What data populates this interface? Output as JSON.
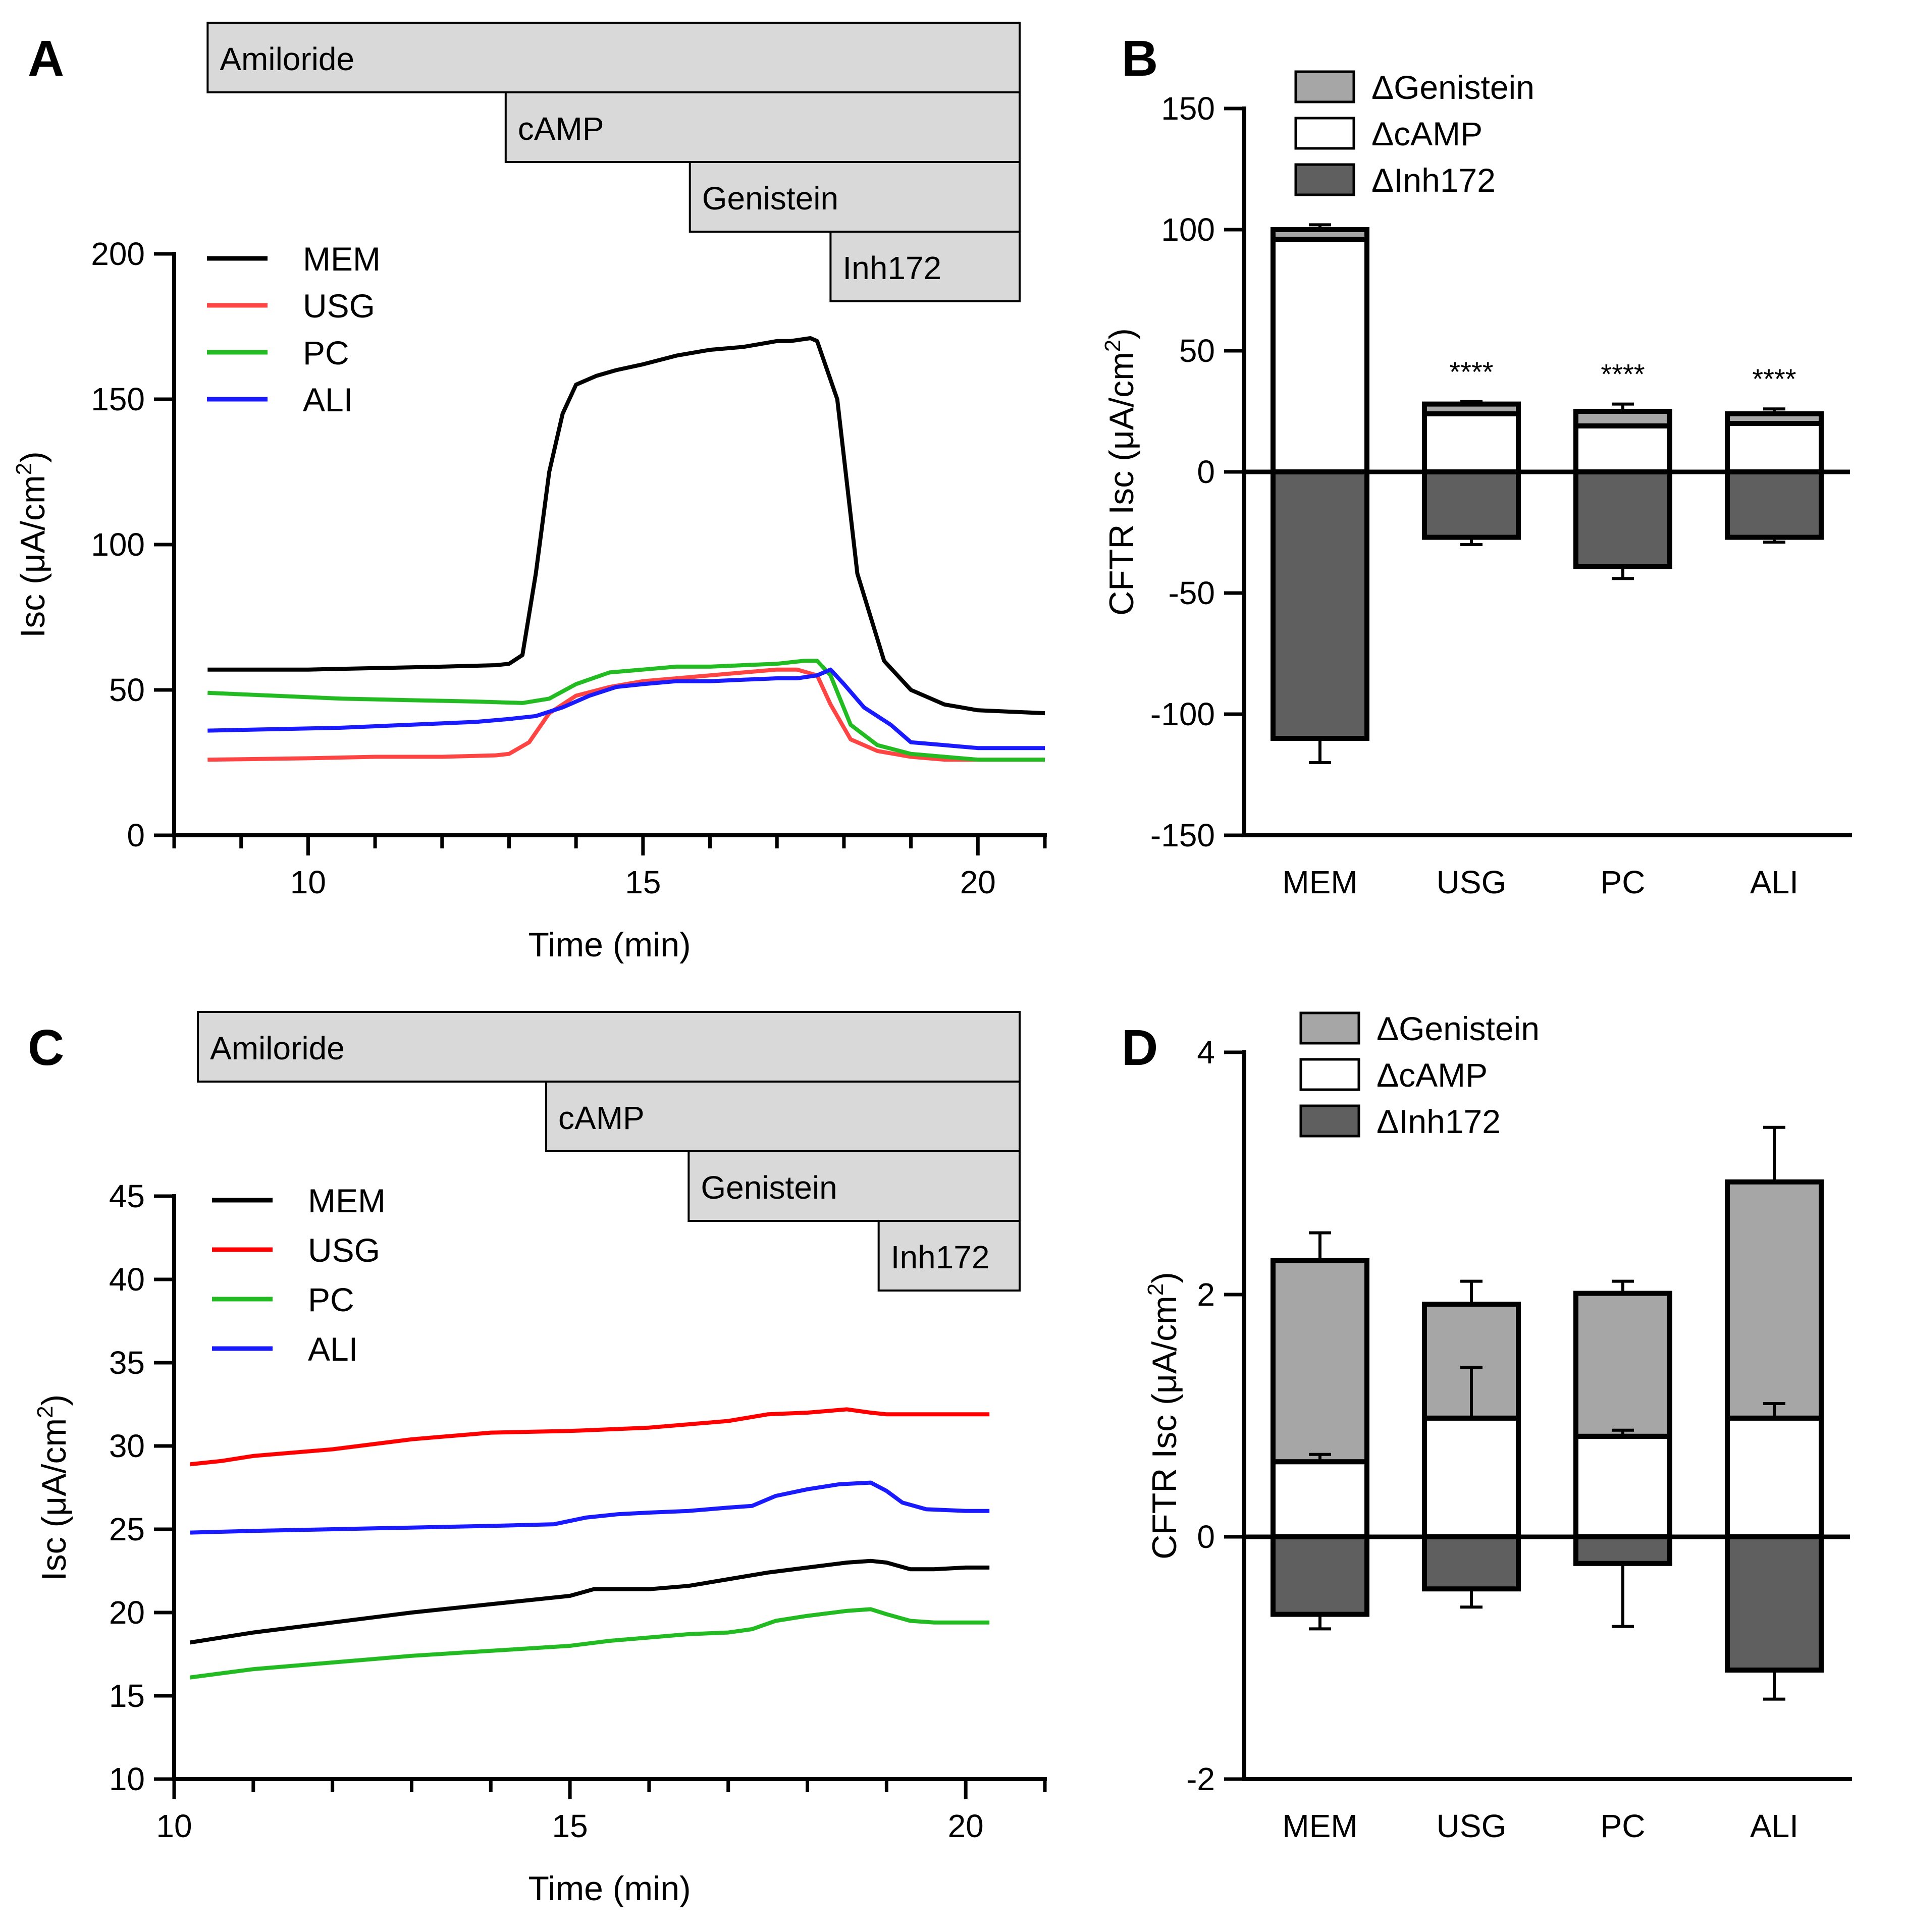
{
  "panels": [
    {
      "label": "A",
      "chart_data": {
        "type": "line",
        "xlabel": "Time (min)",
        "ylabel": "Isc (μA/cm²)",
        "xlim": [
          8.0,
          21.0
        ],
        "ylim": [
          0,
          200
        ],
        "xticks": [
          10,
          15,
          20
        ],
        "yticks": [
          0,
          50,
          100,
          150,
          200
        ],
        "legend": [
          "MEM",
          "USG",
          "PC",
          "ALI"
        ],
        "treatments": [
          {
            "label": "Amiloride",
            "start": 8.5
          },
          {
            "label": "cAMP",
            "start": 12.95
          },
          {
            "label": "Genistein",
            "start": 15.7
          },
          {
            "label": "Inh172",
            "start": 17.8
          }
        ],
        "series": [
          {
            "name": "MEM",
            "color": "#000000",
            "x": [
              8.5,
              10,
              11,
              12,
              12.8,
              13.0,
              13.2,
              13.4,
              13.6,
              13.8,
              14.0,
              14.3,
              14.6,
              15.0,
              15.5,
              16.0,
              16.5,
              17.0,
              17.2,
              17.5,
              17.6,
              17.9,
              18.2,
              18.6,
              19.0,
              19.5,
              20.0,
              21.0
            ],
            "y": [
              57,
              57,
              57.5,
              58,
              58.5,
              59,
              62,
              90,
              125,
              145,
              155,
              158,
              160,
              162,
              165,
              167,
              168,
              170,
              170,
              171,
              170,
              150,
              90,
              60,
              50,
              45,
              43,
              42
            ]
          },
          {
            "name": "USG",
            "color": "#ff4444",
            "x": [
              8.5,
              10,
              11,
              12,
              12.8,
              13.0,
              13.3,
              13.6,
              14.0,
              14.5,
              15.0,
              15.5,
              16.0,
              16.5,
              17.0,
              17.3,
              17.6,
              17.8,
              18.1,
              18.5,
              19.0,
              19.5,
              20.0,
              21.0
            ],
            "y": [
              26,
              26.5,
              27,
              27,
              27.5,
              28,
              32,
              42,
              48,
              51,
              53,
              54,
              55,
              56,
              57,
              57,
              55,
              45,
              33,
              29,
              27,
              26,
              26,
              26
            ]
          },
          {
            "name": "PC",
            "color": "#22bb22",
            "x": [
              8.5,
              9.5,
              10.5,
              11.5,
              12.5,
              13.2,
              13.6,
              14.0,
              14.5,
              15.0,
              15.5,
              16.0,
              16.5,
              17.0,
              17.4,
              17.6,
              17.8,
              18.1,
              18.5,
              19.0,
              19.5,
              20.0,
              21.0
            ],
            "y": [
              49,
              48,
              47,
              46.5,
              46,
              45.5,
              47,
              52,
              56,
              57,
              58,
              58,
              58.5,
              59,
              60,
              60,
              55,
              38,
              31,
              28,
              27,
              26,
              26
            ]
          },
          {
            "name": "ALI",
            "color": "#1a1aff",
            "x": [
              8.5,
              9.5,
              10.5,
              11.5,
              12.5,
              13.0,
              13.4,
              13.8,
              14.2,
              14.6,
              15.0,
              15.5,
              16.0,
              16.5,
              17.0,
              17.3,
              17.6,
              17.8,
              18.0,
              18.3,
              18.7,
              19.0,
              19.5,
              20.0,
              21.0
            ],
            "y": [
              36,
              36.5,
              37,
              38,
              39,
              40,
              41,
              44,
              48,
              51,
              52,
              53,
              53,
              53.5,
              54,
              54,
              55,
              57,
              52,
              44,
              38,
              32,
              31,
              30,
              30
            ]
          }
        ]
      }
    },
    {
      "label": "B",
      "chart_data": {
        "type": "bar",
        "stacked": true,
        "ylabel": "CFTR Isc (μA/cm²)",
        "ylim": [
          -150,
          150
        ],
        "yticks": [
          -150,
          -100,
          -50,
          0,
          50,
          100,
          150
        ],
        "categories": [
          "MEM",
          "USG",
          "PC",
          "ALI"
        ],
        "legend": [
          "ΔGenistein",
          "ΔcAMP",
          "ΔInh172"
        ],
        "series": [
          {
            "name": "ΔcAMP",
            "color": "#ffffff",
            "values": [
              96,
              24,
              19,
              20
            ],
            "err": [
              null,
              null,
              null,
              null
            ]
          },
          {
            "name": "ΔGenistein",
            "color": "#a6a6a6",
            "values": [
              4,
              4,
              6,
              4
            ],
            "err": [
              2,
              1,
              3,
              2
            ]
          },
          {
            "name": "ΔInh172",
            "color": "#5f5f5f",
            "values": [
              -110,
              -27,
              -39,
              -27
            ],
            "err": [
              10,
              3,
              5,
              2
            ]
          }
        ],
        "annotations": [
          "",
          "****",
          "****",
          "****"
        ]
      }
    },
    {
      "label": "C",
      "chart_data": {
        "type": "line",
        "xlabel": "Time (min)",
        "ylabel": "Isc (μA/cm²)",
        "xlim": [
          10.0,
          21.0
        ],
        "ylim": [
          10,
          45
        ],
        "xticks": [
          10,
          15,
          20
        ],
        "yticks": [
          10,
          15,
          20,
          25,
          30,
          35,
          40,
          45
        ],
        "legend": [
          "MEM",
          "USG",
          "PC",
          "ALI"
        ],
        "treatments": [
          {
            "label": "Amiloride",
            "start": 10.3
          },
          {
            "label": "cAMP",
            "start": 14.7
          },
          {
            "label": "Genistein",
            "start": 16.5
          },
          {
            "label": "Inh172",
            "start": 18.9
          }
        ],
        "series": [
          {
            "name": "MEM",
            "color": "#000000",
            "x": [
              10.2,
              11,
              12,
              13,
              14,
              15,
              15.3,
              16,
              16.5,
              17,
              17.5,
              18,
              18.5,
              18.8,
              19,
              19.3,
              19.6,
              20.0,
              20.3
            ],
            "y": [
              18.2,
              18.8,
              19.4,
              20.0,
              20.5,
              21.0,
              21.4,
              21.4,
              21.6,
              22.0,
              22.4,
              22.7,
              23.0,
              23.1,
              23.0,
              22.6,
              22.6,
              22.7,
              22.7
            ]
          },
          {
            "name": "USG",
            "color": "#ff0000",
            "x": [
              10.2,
              10.6,
              11,
              12,
              13,
              14,
              15,
              16,
              17,
              17.5,
              18,
              18.5,
              18.8,
              19.0,
              19.3,
              20.0,
              20.3
            ],
            "y": [
              28.9,
              29.1,
              29.4,
              29.8,
              30.4,
              30.8,
              30.9,
              31.1,
              31.5,
              31.9,
              32.0,
              32.2,
              32.0,
              31.9,
              31.9,
              31.9,
              31.9
            ]
          },
          {
            "name": "PC",
            "color": "#22bb22",
            "x": [
              10.2,
              11,
              12,
              13,
              14,
              15,
              15.5,
              16,
              16.5,
              17,
              17.3,
              17.6,
              18,
              18.5,
              18.8,
              19.0,
              19.3,
              19.6,
              20.0,
              20.3
            ],
            "y": [
              16.1,
              16.6,
              17.0,
              17.4,
              17.7,
              18.0,
              18.3,
              18.5,
              18.7,
              18.8,
              19.0,
              19.5,
              19.8,
              20.1,
              20.2,
              19.9,
              19.5,
              19.4,
              19.4,
              19.4
            ]
          },
          {
            "name": "ALI",
            "color": "#1a1aff",
            "x": [
              10.2,
              11,
              12,
              13,
              14,
              14.8,
              15.2,
              15.6,
              16,
              16.5,
              17,
              17.3,
              17.6,
              18,
              18.4,
              18.8,
              19.0,
              19.2,
              19.5,
              20.0,
              20.3
            ],
            "y": [
              24.8,
              24.9,
              25.0,
              25.1,
              25.2,
              25.3,
              25.7,
              25.9,
              26.0,
              26.1,
              26.3,
              26.4,
              27.0,
              27.4,
              27.7,
              27.8,
              27.3,
              26.6,
              26.2,
              26.1,
              26.1
            ]
          }
        ]
      }
    },
    {
      "label": "D",
      "chart_data": {
        "type": "bar",
        "stacked": true,
        "ylabel": "CFTR Isc (μA/cm²)",
        "ylim": [
          -2,
          4
        ],
        "yticks": [
          -2,
          0,
          2,
          4
        ],
        "categories": [
          "MEM",
          "USG",
          "PC",
          "ALI"
        ],
        "legend": [
          "ΔGenistein",
          "ΔcAMP",
          "ΔInh172"
        ],
        "series": [
          {
            "name": "ΔcAMP",
            "color": "#ffffff",
            "values": [
              0.62,
              0.98,
              0.83,
              0.98
            ],
            "err": [
              0.06,
              0.42,
              0.05,
              0.12
            ]
          },
          {
            "name": "ΔGenistein",
            "color": "#a6a6a6",
            "values": [
              1.66,
              0.94,
              1.18,
              1.95
            ],
            "err": [
              0.23,
              0.19,
              0.1,
              0.45
            ]
          },
          {
            "name": "ΔInh172",
            "color": "#5f5f5f",
            "values": [
              -0.64,
              -0.43,
              -0.22,
              -1.1
            ],
            "err": [
              0.12,
              0.15,
              0.52,
              0.24
            ]
          }
        ],
        "annotations": [
          "",
          "",
          "",
          ""
        ]
      }
    }
  ]
}
